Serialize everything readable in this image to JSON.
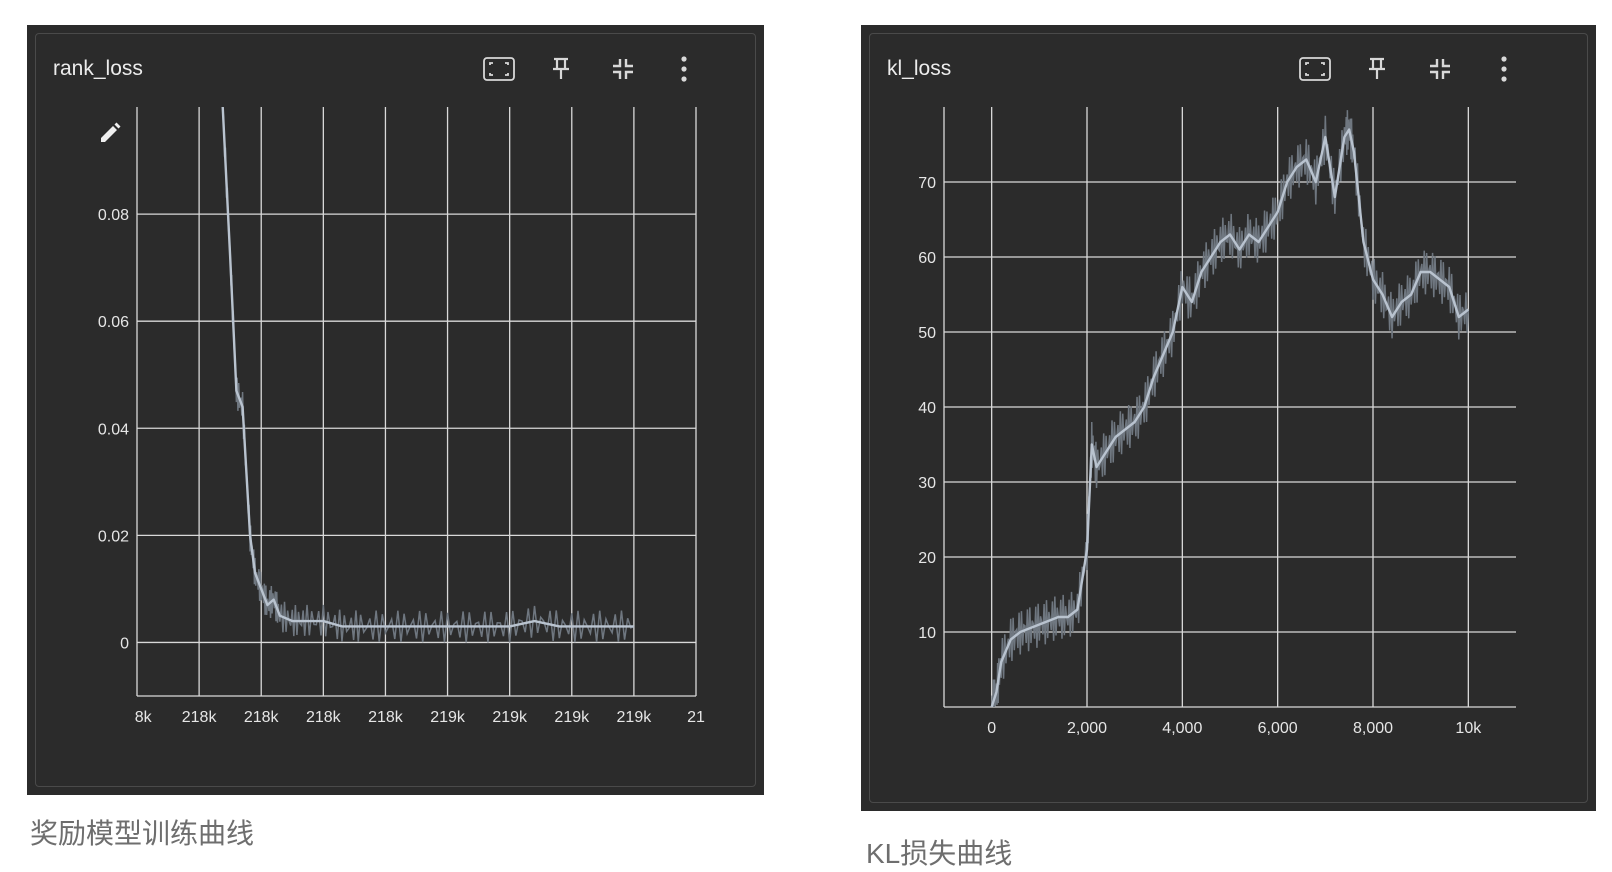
{
  "panels": [
    {
      "title": "rank_loss",
      "icons": [
        "fit-domain-icon",
        "pin-icon",
        "collapse-icon",
        "more-vert-icon"
      ],
      "edit_icon": "pencil-icon"
    },
    {
      "title": "kl_loss",
      "icons": [
        "fit-domain-icon",
        "pin-icon",
        "collapse-icon",
        "more-vert-icon"
      ]
    }
  ],
  "captions": [
    "奖励模型训练曲线",
    "KL损失曲线"
  ],
  "colors": {
    "panel_bg": "#2b2b2b",
    "grid": "#d9d9d9",
    "line": "#b9c3cf",
    "raw_line": "#6f7780",
    "tick_text": "#e6e6e6"
  },
  "chart_data": [
    {
      "type": "line",
      "title": "rank_loss",
      "xlabel": "",
      "ylabel": "",
      "x_tick_labels": [
        "8k",
        "218k",
        "218k",
        "218k",
        "218k",
        "219k",
        "219k",
        "219k",
        "219k",
        "21"
      ],
      "y_ticks": [
        0,
        0.02,
        0.04,
        0.06,
        0.08
      ],
      "y_tick_labels": [
        "0",
        "0.02",
        "0.04",
        "0.06",
        "0.08"
      ],
      "ylim": [
        -0.01,
        0.1
      ],
      "xlim": [
        0,
        9
      ],
      "grid": true,
      "series": [
        {
          "x": [
            1.38,
            1.5,
            1.6,
            1.7,
            1.82,
            1.9,
            2.0,
            2.1,
            2.2,
            2.3,
            2.5,
            2.7,
            3.0,
            3.3,
            3.6,
            4.0,
            4.4,
            4.8,
            5.2,
            5.6,
            6.0,
            6.4,
            6.8,
            7.2,
            7.6,
            8.0
          ],
          "values": [
            0.1,
            0.072,
            0.047,
            0.044,
            0.02,
            0.013,
            0.01,
            0.007,
            0.008,
            0.005,
            0.004,
            0.004,
            0.004,
            0.003,
            0.003,
            0.003,
            0.003,
            0.003,
            0.003,
            0.003,
            0.003,
            0.004,
            0.003,
            0.003,
            0.003,
            0.003
          ]
        }
      ]
    },
    {
      "type": "line",
      "title": "kl_loss",
      "xlabel": "",
      "ylabel": "",
      "x_ticks": [
        0,
        2000,
        4000,
        6000,
        8000,
        10000
      ],
      "x_tick_labels": [
        "0",
        "2,000",
        "4,000",
        "6,000",
        "8,000",
        "10k"
      ],
      "y_ticks": [
        10,
        20,
        30,
        40,
        50,
        60,
        70
      ],
      "y_tick_labels": [
        "10",
        "20",
        "30",
        "40",
        "50",
        "60",
        "70"
      ],
      "xlim": [
        -1000,
        11000
      ],
      "ylim": [
        0,
        80
      ],
      "grid": true,
      "series": [
        {
          "x": [
            0,
            100,
            200,
            400,
            600,
            800,
            1000,
            1200,
            1400,
            1600,
            1800,
            2000,
            2100,
            2200,
            2400,
            2600,
            2800,
            3000,
            3200,
            3400,
            3600,
            3800,
            4000,
            4200,
            4400,
            4600,
            4800,
            5000,
            5200,
            5400,
            5600,
            5800,
            6000,
            6200,
            6400,
            6600,
            6800,
            7000,
            7200,
            7400,
            7500,
            7600,
            7800,
            8000,
            8200,
            8400,
            8600,
            8800,
            9000,
            9200,
            9400,
            9600,
            9800,
            10000
          ],
          "values": [
            0,
            2,
            6,
            9,
            10,
            10.5,
            11,
            11.5,
            12,
            12,
            13,
            21,
            35,
            32,
            34,
            36,
            37,
            38,
            40,
            44,
            47,
            50,
            56,
            54,
            58,
            60,
            62,
            63,
            61,
            63,
            62,
            64,
            66,
            70,
            72,
            73,
            70,
            76,
            68,
            76,
            77,
            74,
            62,
            57,
            55,
            52,
            54,
            55,
            58,
            58,
            57,
            56,
            52,
            53
          ]
        }
      ]
    }
  ]
}
